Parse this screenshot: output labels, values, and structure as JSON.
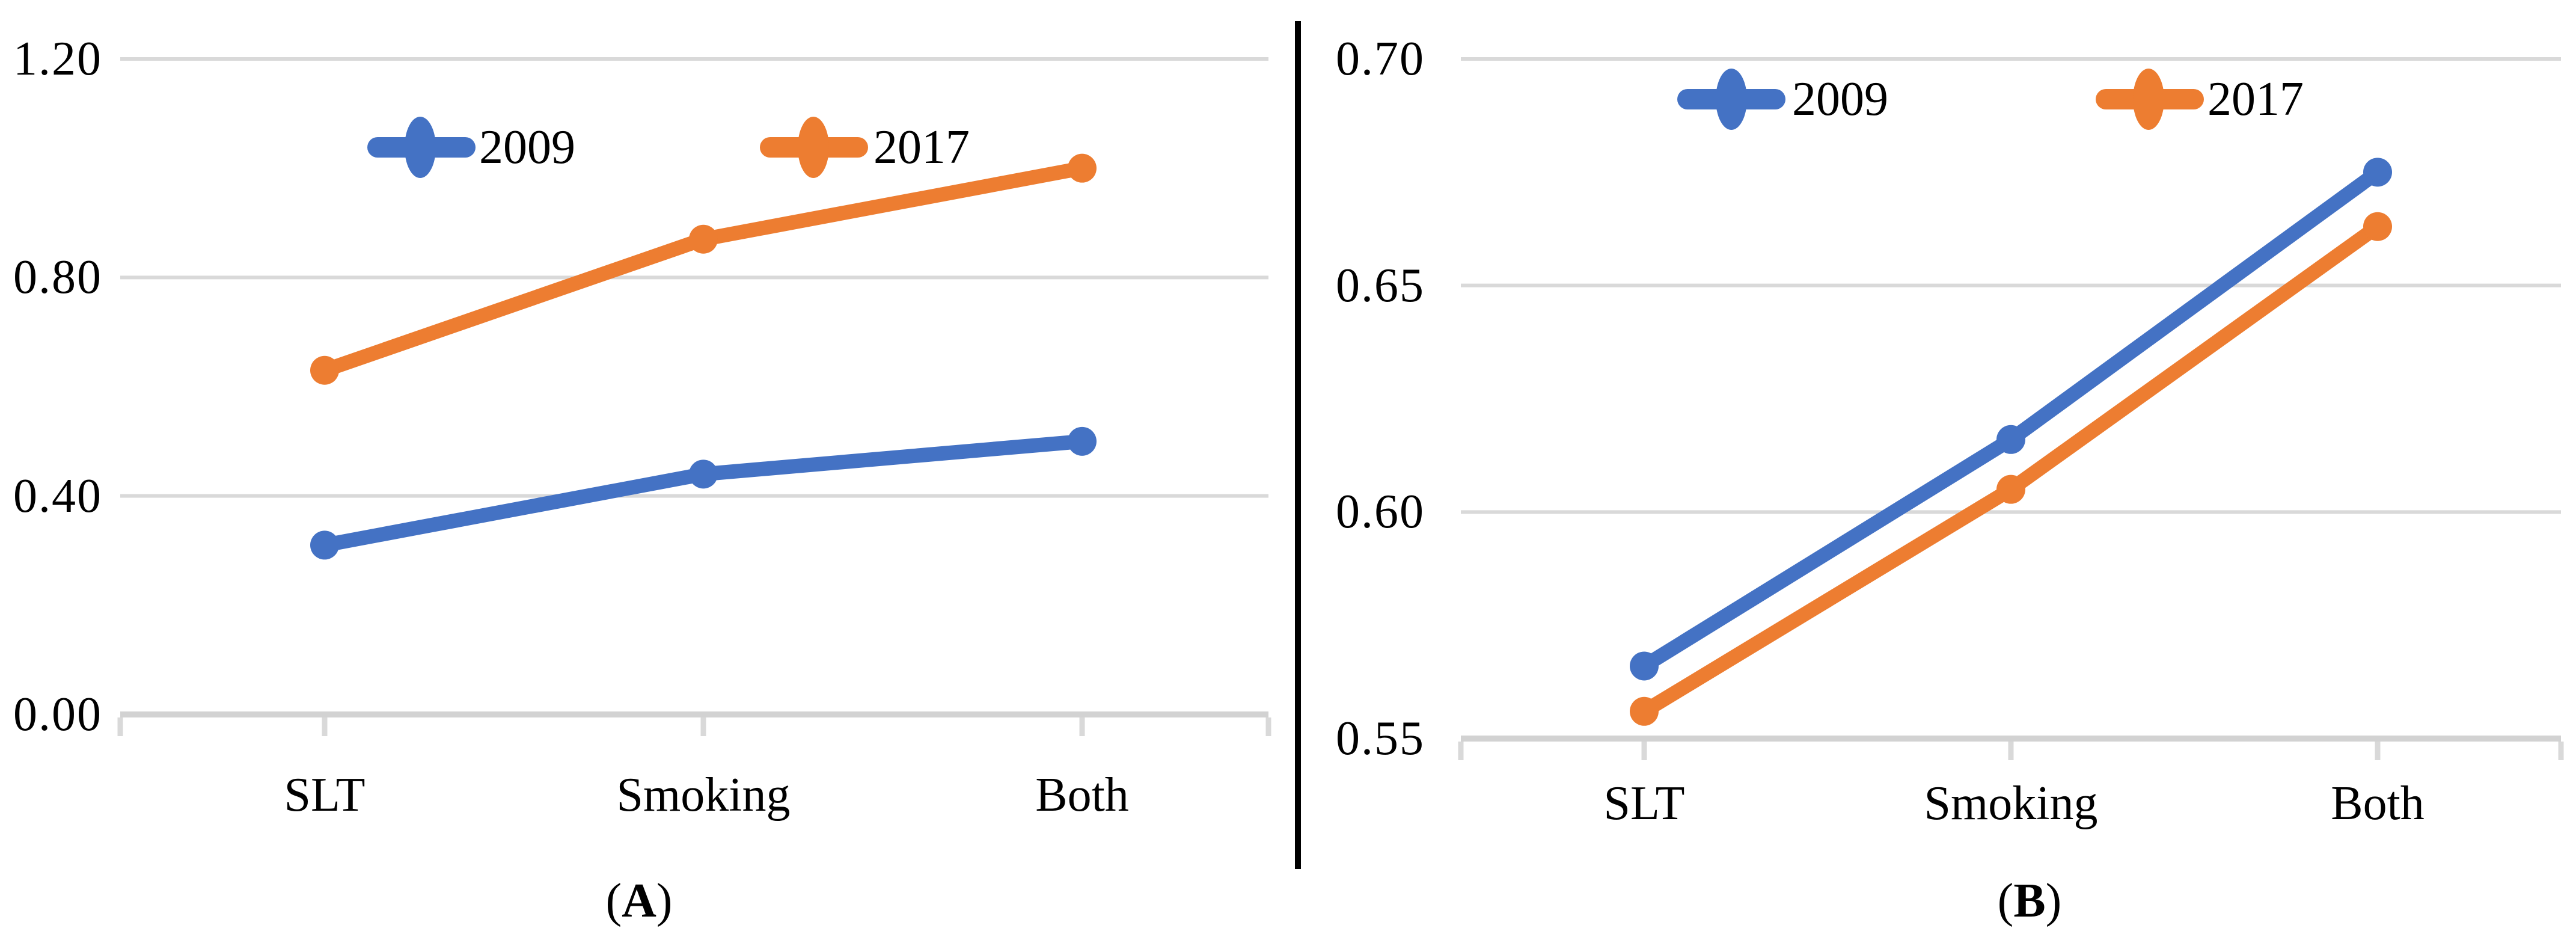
{
  "chart_data": [
    {
      "type": "line",
      "panel": "A",
      "caption": "(A)",
      "title": "",
      "xlabel": "",
      "ylabel": "",
      "categories": [
        "SLT",
        "Smoking",
        "Both"
      ],
      "series": [
        {
          "name": "2009",
          "color": "#4472C4",
          "values": [
            0.31,
            0.44,
            0.5
          ]
        },
        {
          "name": "2017",
          "color": "#ED7D31",
          "values": [
            0.63,
            0.87,
            1.0
          ]
        }
      ],
      "ylim": [
        0.0,
        1.2
      ],
      "yticks": [
        1.2,
        0.8,
        0.4,
        0.0
      ],
      "yticklabels": [
        "1.20",
        "0.80",
        "0.40",
        "0.00"
      ],
      "grid": true,
      "legend_position": "top-center-inside"
    },
    {
      "type": "line",
      "panel": "B",
      "caption": "(B)",
      "title": "",
      "xlabel": "",
      "ylabel": "",
      "categories": [
        "SLT",
        "Smoking",
        "Both"
      ],
      "series": [
        {
          "name": "2009",
          "color": "#4472C4",
          "values": [
            0.566,
            0.616,
            0.675
          ]
        },
        {
          "name": "2017",
          "color": "#ED7D31",
          "values": [
            0.556,
            0.605,
            0.663
          ]
        }
      ],
      "ylim": [
        0.55,
        0.7
      ],
      "yticks": [
        0.7,
        0.65,
        0.6,
        0.55
      ],
      "yticklabels": [
        "0.70",
        "0.65",
        "0.60",
        "0.55"
      ],
      "grid": true,
      "legend_position": "top-center-inside"
    }
  ],
  "captions": [
    {
      "open": "(",
      "letter": "A",
      "close": ")"
    },
    {
      "open": "(",
      "letter": "B",
      "close": ")"
    }
  ],
  "styles": {
    "series_blue": "#4472C4",
    "series_orange": "#ED7D31",
    "grid_color": "#D9D9D9",
    "axis_color": "#D2D2D2",
    "divider_color": "#000000",
    "text_color": "#000000",
    "background": "#FFFFFF"
  }
}
